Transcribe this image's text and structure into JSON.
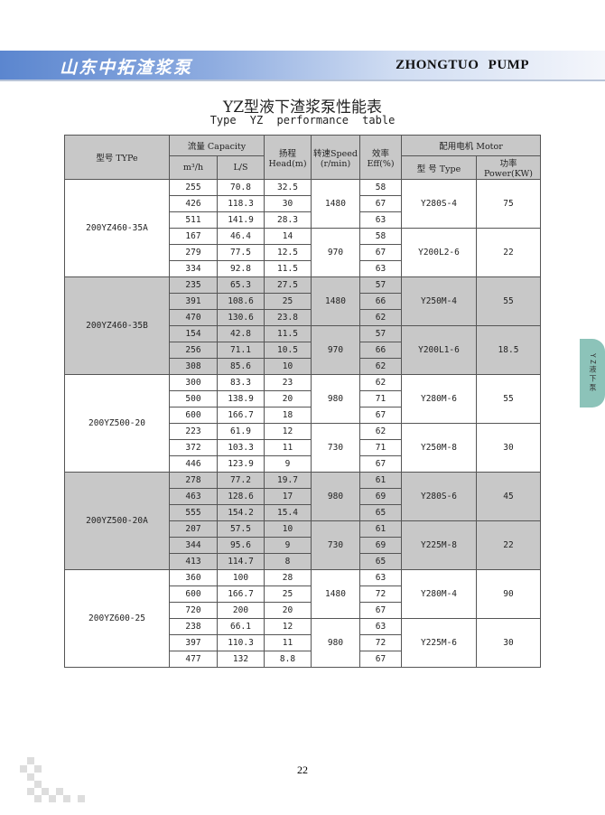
{
  "header": {
    "brand_cn": "山东中拓渣浆泵",
    "brand_en": "ZHONGTUO PUMP"
  },
  "title": "YZ型液下渣浆泵性能表",
  "subtitle": "Type YZ performance table",
  "side_tab": "YZ液下泵",
  "page_number": "22",
  "table": {
    "headers": {
      "model": "型号 TYPe",
      "capacity": "流量 Capacity",
      "m3h": "m³/h",
      "ls": "L/S",
      "head": "扬程 Head(m)",
      "speed": "转速Speed (r/min)",
      "eff": "效率 Eff(%)",
      "motor": "配用电机 Motor",
      "motor_type": "型 号 Type",
      "power": "功率Power(KW)"
    },
    "groups": [
      {
        "model": "200YZ460-35A",
        "shaded": false,
        "subs": [
          {
            "speed": "1480",
            "motor": "Y280S-4",
            "power": "75",
            "rows": [
              [
                "255",
                "70.8",
                "32.5",
                "58"
              ],
              [
                "426",
                "118.3",
                "30",
                "67"
              ],
              [
                "511",
                "141.9",
                "28.3",
                "63"
              ]
            ]
          },
          {
            "speed": "970",
            "motor": "Y200L2-6",
            "power": "22",
            "rows": [
              [
                "167",
                "46.4",
                "14",
                "58"
              ],
              [
                "279",
                "77.5",
                "12.5",
                "67"
              ],
              [
                "334",
                "92.8",
                "11.5",
                "63"
              ]
            ]
          }
        ]
      },
      {
        "model": "200YZ460-35B",
        "shaded": true,
        "subs": [
          {
            "speed": "1480",
            "motor": "Y250M-4",
            "power": "55",
            "rows": [
              [
                "235",
                "65.3",
                "27.5",
                "57"
              ],
              [
                "391",
                "108.6",
                "25",
                "66"
              ],
              [
                "470",
                "130.6",
                "23.8",
                "62"
              ]
            ]
          },
          {
            "speed": "970",
            "motor": "Y200L1-6",
            "power": "18.5",
            "rows": [
              [
                "154",
                "42.8",
                "11.5",
                "57"
              ],
              [
                "256",
                "71.1",
                "10.5",
                "66"
              ],
              [
                "308",
                "85.6",
                "10",
                "62"
              ]
            ]
          }
        ]
      },
      {
        "model": "200YZ500-20",
        "shaded": false,
        "subs": [
          {
            "speed": "980",
            "motor": "Y280M-6",
            "power": "55",
            "rows": [
              [
                "300",
                "83.3",
                "23",
                "62"
              ],
              [
                "500",
                "138.9",
                "20",
                "71"
              ],
              [
                "600",
                "166.7",
                "18",
                "67"
              ]
            ]
          },
          {
            "speed": "730",
            "motor": "Y250M-8",
            "power": "30",
            "rows": [
              [
                "223",
                "61.9",
                "12",
                "62"
              ],
              [
                "372",
                "103.3",
                "11",
                "71"
              ],
              [
                "446",
                "123.9",
                "9",
                "67"
              ]
            ]
          }
        ]
      },
      {
        "model": "200YZ500-20A",
        "shaded": true,
        "subs": [
          {
            "speed": "980",
            "motor": "Y280S-6",
            "power": "45",
            "rows": [
              [
                "278",
                "77.2",
                "19.7",
                "61"
              ],
              [
                "463",
                "128.6",
                "17",
                "69"
              ],
              [
                "555",
                "154.2",
                "15.4",
                "65"
              ]
            ]
          },
          {
            "speed": "730",
            "motor": "Y225M-8",
            "power": "22",
            "rows": [
              [
                "207",
                "57.5",
                "10",
                "61"
              ],
              [
                "344",
                "95.6",
                "9",
                "69"
              ],
              [
                "413",
                "114.7",
                "8",
                "65"
              ]
            ]
          }
        ]
      },
      {
        "model": "200YZ600-25",
        "shaded": false,
        "subs": [
          {
            "speed": "1480",
            "motor": "Y280M-4",
            "power": "90",
            "rows": [
              [
                "360",
                "100",
                "28",
                "63"
              ],
              [
                "600",
                "166.7",
                "25",
                "72"
              ],
              [
                "720",
                "200",
                "20",
                "67"
              ]
            ]
          },
          {
            "speed": "980",
            "motor": "Y225M-6",
            "power": "30",
            "rows": [
              [
                "238",
                "66.1",
                "12",
                "63"
              ],
              [
                "397",
                "110.3",
                "11",
                "72"
              ],
              [
                "477",
                "132",
                "8.8",
                "67"
              ]
            ]
          }
        ]
      }
    ]
  }
}
